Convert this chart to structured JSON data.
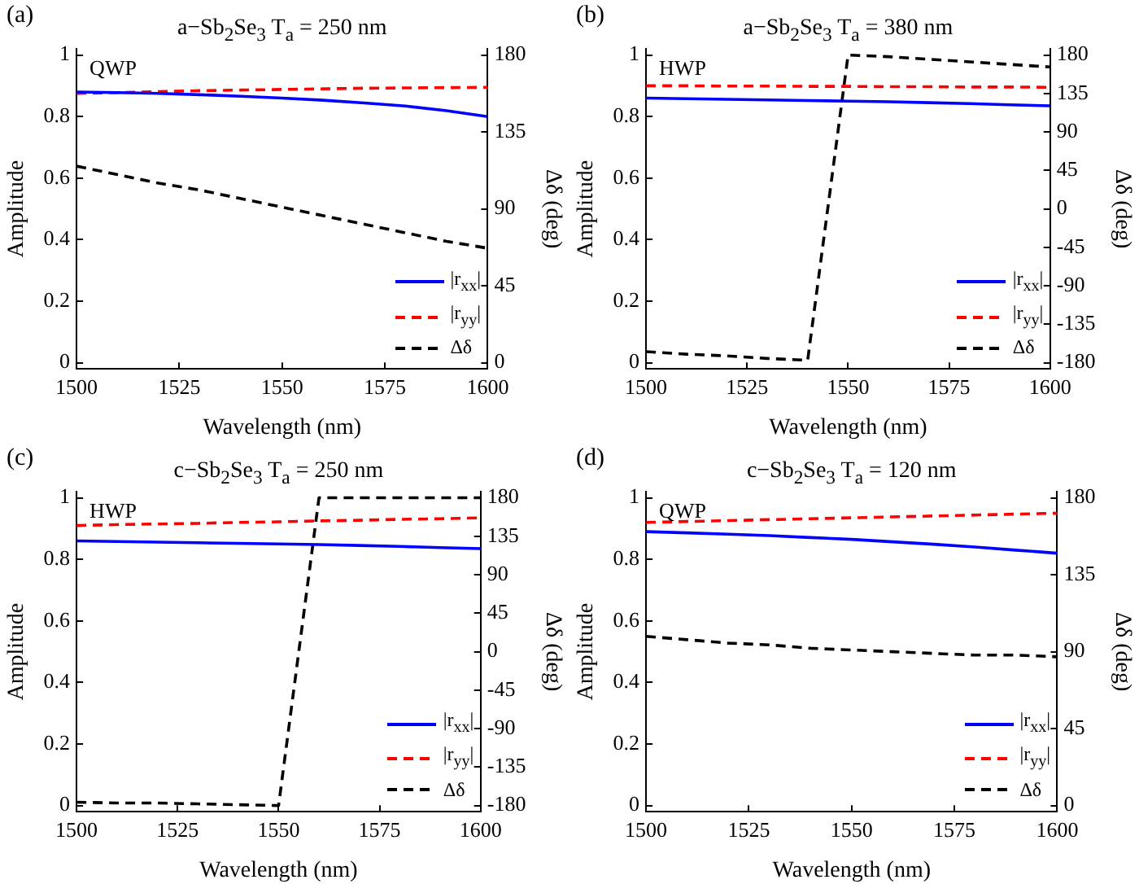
{
  "chart_data": [
    {
      "type": "line",
      "title": "a−Sb$_{2}$Se$_{3}$ T$_{a}$ = 250 nm",
      "xlabel": "Wavelength (nm)",
      "ylabel": "Amplitude",
      "y2label": "Δδ (deg)",
      "annotations": [
        "(a)",
        "QWP"
      ],
      "xlim": [
        1500,
        1600
      ],
      "xticks": [
        1500,
        1525,
        1550,
        1575,
        1600
      ],
      "ylim": [
        -0.02,
        1.02
      ],
      "yticks": [
        0,
        0.2,
        0.4,
        0.6,
        0.8,
        1
      ],
      "y2lim": [
        -3.6,
        183.6
      ],
      "y2ticks": [
        0,
        45,
        90,
        135,
        180
      ],
      "grid": false,
      "legend": "bottom right",
      "marker": "none",
      "x": [
        1500,
        1510,
        1520,
        1530,
        1540,
        1550,
        1560,
        1570,
        1580,
        1590,
        1600
      ],
      "series": [
        {
          "name": "|r$_{xx}$|",
          "color": "#0000ff",
          "line_style": "solid",
          "values": [
            0.88,
            0.878,
            0.875,
            0.871,
            0.866,
            0.86,
            0.853,
            0.844,
            0.834,
            0.819,
            0.8
          ]
        },
        {
          "name": "|r$_{yy}$|",
          "color": "#ff0000",
          "line_style": "dashed",
          "values": [
            0.875,
            0.878,
            0.881,
            0.884,
            0.886,
            0.888,
            0.89,
            0.892,
            0.893,
            0.894,
            0.895
          ]
        },
        {
          "name": "Δδ",
          "color": "#000000",
          "line_style": "dashed",
          "axis": "y2",
          "values": [
            115,
            110,
            105,
            101,
            96,
            91,
            86,
            81,
            76,
            71,
            67
          ]
        }
      ]
    },
    {
      "type": "line",
      "title": "a−Sb$_{2}$Se$_{3}$ T$_{a}$ = 380 nm",
      "xlabel": "Wavelength (nm)",
      "ylabel": "Amplitude",
      "y2label": "Δδ (deg)",
      "annotations": [
        "(b)",
        "HWP"
      ],
      "xlim": [
        1500,
        1600
      ],
      "xticks": [
        1500,
        1525,
        1550,
        1575,
        1600
      ],
      "ylim": [
        -0.02,
        1.02
      ],
      "yticks": [
        0,
        0.2,
        0.4,
        0.6,
        0.8,
        1
      ],
      "y2lim": [
        -187.2,
        187.2
      ],
      "y2ticks": [
        -180,
        -135,
        -90,
        -45,
        0,
        45,
        90,
        135,
        180
      ],
      "grid": false,
      "legend": "bottom right",
      "marker": "none",
      "x": [
        1500,
        1510,
        1520,
        1530,
        1540,
        1550,
        1560,
        1570,
        1580,
        1590,
        1600
      ],
      "series": [
        {
          "name": "|r$_{xx}$|",
          "color": "#0000ff",
          "line_style": "solid",
          "values": [
            0.86,
            0.858,
            0.856,
            0.854,
            0.852,
            0.85,
            0.848,
            0.845,
            0.842,
            0.838,
            0.835
          ]
        },
        {
          "name": "|r$_{yy}$|",
          "color": "#ff0000",
          "line_style": "dashed",
          "values": [
            0.9,
            0.9,
            0.899,
            0.899,
            0.898,
            0.898,
            0.897,
            0.897,
            0.896,
            0.896,
            0.895
          ]
        },
        {
          "name": "Δδ",
          "color": "#000000",
          "line_style": "dashed",
          "axis": "y2",
          "values": [
            -167,
            -170,
            -172,
            -175,
            -177,
            180,
            178,
            175,
            172,
            169,
            166
          ]
        }
      ]
    },
    {
      "type": "line",
      "title": "c−Sb$_{2}$Se$_{3}$ T$_{a}$ = 250 nm",
      "xlabel": "Wavelength (nm)",
      "ylabel": "Amplitude",
      "y2label": "Δδ (deg)",
      "annotations": [
        "(c)",
        "HWP"
      ],
      "xlim": [
        1500,
        1600
      ],
      "xticks": [
        1500,
        1525,
        1550,
        1575,
        1600
      ],
      "ylim": [
        -0.02,
        1.02
      ],
      "yticks": [
        0,
        0.2,
        0.4,
        0.6,
        0.8,
        1
      ],
      "y2lim": [
        -187.2,
        187.2
      ],
      "y2ticks": [
        -180,
        -135,
        -90,
        -45,
        0,
        45,
        90,
        135,
        180
      ],
      "grid": false,
      "legend": "bottom right",
      "marker": "none",
      "x": [
        1500,
        1510,
        1520,
        1530,
        1540,
        1550,
        1560,
        1570,
        1580,
        1590,
        1600
      ],
      "series": [
        {
          "name": "|r$_{xx}$|",
          "color": "#0000ff",
          "line_style": "solid",
          "values": [
            0.86,
            0.858,
            0.856,
            0.854,
            0.852,
            0.85,
            0.848,
            0.845,
            0.842,
            0.838,
            0.835
          ]
        },
        {
          "name": "|r$_{yy}$|",
          "color": "#ff0000",
          "line_style": "dashed",
          "values": [
            0.91,
            0.913,
            0.915,
            0.917,
            0.92,
            0.922,
            0.925,
            0.927,
            0.93,
            0.932,
            0.935
          ]
        },
        {
          "name": "Δδ",
          "color": "#000000",
          "line_style": "dashed",
          "axis": "y2",
          "values": [
            -176,
            -177,
            -177,
            -178,
            -179,
            -180,
            180,
            180,
            180,
            180,
            180
          ]
        }
      ]
    },
    {
      "type": "line",
      "title": "c−Sb$_{2}$Se$_{3}$ T$_{a}$ = 120 nm",
      "xlabel": "Wavelength (nm)",
      "ylabel": "Amplitude",
      "y2label": "Δδ (deg)",
      "annotations": [
        "(d)",
        "QWP"
      ],
      "xlim": [
        1500,
        1600
      ],
      "xticks": [
        1500,
        1525,
        1550,
        1575,
        1600
      ],
      "ylim": [
        -0.02,
        1.02
      ],
      "yticks": [
        0,
        0.2,
        0.4,
        0.6,
        0.8,
        1
      ],
      "y2lim": [
        -3.6,
        183.6
      ],
      "y2ticks": [
        0,
        45,
        90,
        135,
        180
      ],
      "grid": false,
      "legend": "bottom right",
      "marker": "none",
      "x": [
        1500,
        1510,
        1520,
        1530,
        1540,
        1550,
        1560,
        1570,
        1580,
        1590,
        1600
      ],
      "series": [
        {
          "name": "|r$_{xx}$|",
          "color": "#0000ff",
          "line_style": "solid",
          "values": [
            0.89,
            0.886,
            0.882,
            0.877,
            0.871,
            0.865,
            0.857,
            0.849,
            0.84,
            0.83,
            0.82
          ]
        },
        {
          "name": "|r$_{yy}$|",
          "color": "#ff0000",
          "line_style": "dashed",
          "values": [
            0.92,
            0.923,
            0.926,
            0.929,
            0.932,
            0.935,
            0.938,
            0.941,
            0.944,
            0.947,
            0.95
          ]
        },
        {
          "name": "Δδ",
          "color": "#000000",
          "line_style": "dashed",
          "axis": "y2",
          "values": [
            99,
            97,
            95,
            94,
            92,
            91,
            90,
            89,
            88,
            88,
            87
          ]
        }
      ]
    }
  ]
}
